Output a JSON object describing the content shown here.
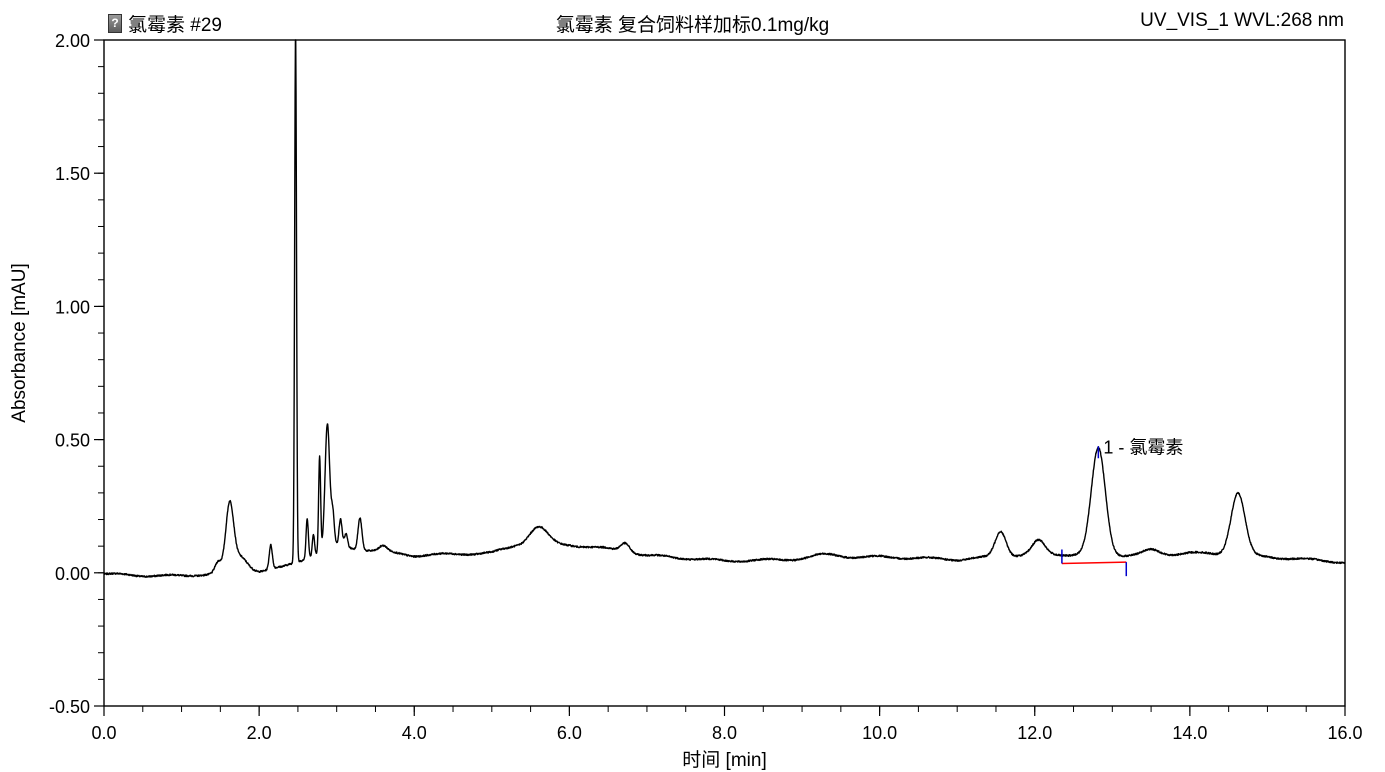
{
  "header": {
    "sample_label": "氯霉素 #29",
    "sample_icon": "document-icon",
    "title": "氯霉素 复合饲料样加标0.1mg/kg",
    "channel": "UV_VIS_1 WVL:268 nm"
  },
  "colors": {
    "trace": "#000000",
    "baseline": "#ff0000",
    "peak_marker": "#0000cc"
  },
  "chart_data": {
    "type": "line",
    "title": "氯霉素 复合饲料样加标0.1mg/kg",
    "xlabel": "时间 [min]",
    "ylabel": "Absorbance [mAU]",
    "xlim": [
      0,
      16
    ],
    "ylim": [
      -0.5,
      2.0
    ],
    "x_ticks": [
      0,
      2,
      4,
      6,
      8,
      10,
      12,
      14,
      16
    ],
    "x_tick_labels": [
      "0.0",
      "2.0",
      "4.0",
      "6.0",
      "8.0",
      "10.0",
      "12.0",
      "14.0",
      "16.0"
    ],
    "y_ticks": [
      -0.5,
      0,
      0.5,
      1,
      1.5,
      2
    ],
    "y_tick_labels": [
      "-0.50",
      "0.00",
      "0.50",
      "1.00",
      "1.50",
      "2.00"
    ],
    "grid": false,
    "baseline_points": [
      [
        0.0,
        -0.005
      ],
      [
        0.5,
        -0.01
      ],
      [
        1.0,
        -0.012
      ],
      [
        1.3,
        -0.005
      ],
      [
        2.0,
        0.005
      ],
      [
        2.3,
        0.02
      ],
      [
        3.0,
        0.1
      ],
      [
        4.0,
        0.065
      ],
      [
        5.0,
        0.075
      ],
      [
        5.3,
        0.1
      ],
      [
        6.0,
        0.105
      ],
      [
        6.5,
        0.09
      ],
      [
        7.0,
        0.065
      ],
      [
        8.0,
        0.045
      ],
      [
        9.0,
        0.05
      ],
      [
        10.0,
        0.06
      ],
      [
        11.0,
        0.05
      ],
      [
        12.0,
        0.07
      ],
      [
        13.5,
        0.065
      ],
      [
        14.0,
        0.075
      ],
      [
        15.0,
        0.06
      ],
      [
        16.0,
        0.04
      ]
    ],
    "peaks": [
      {
        "rt": 1.47,
        "h": 0.04,
        "w": 0.04
      },
      {
        "rt": 1.62,
        "h": 0.24,
        "w": 0.05
      },
      {
        "rt": 1.75,
        "h": 0.06,
        "w": 0.1
      },
      {
        "rt": 2.15,
        "h": 0.09,
        "w": 0.02
      },
      {
        "rt": 2.47,
        "h": 2.0,
        "w": 0.012
      },
      {
        "rt": 2.62,
        "h": 0.15,
        "w": 0.015
      },
      {
        "rt": 2.7,
        "h": 0.08,
        "w": 0.015
      },
      {
        "rt": 2.78,
        "h": 0.36,
        "w": 0.013
      },
      {
        "rt": 2.88,
        "h": 0.47,
        "w": 0.03
      },
      {
        "rt": 2.95,
        "h": 0.12,
        "w": 0.02
      },
      {
        "rt": 3.05,
        "h": 0.1,
        "w": 0.02
      },
      {
        "rt": 3.12,
        "h": 0.05,
        "w": 0.02
      },
      {
        "rt": 3.3,
        "h": 0.12,
        "w": 0.025
      },
      {
        "rt": 3.6,
        "h": 0.02,
        "w": 0.05
      },
      {
        "rt": 5.6,
        "h": 0.07,
        "w": 0.12
      },
      {
        "rt": 6.72,
        "h": 0.035,
        "w": 0.06
      },
      {
        "rt": 9.3,
        "h": 0.015,
        "w": 0.2
      },
      {
        "rt": 11.56,
        "h": 0.095,
        "w": 0.07
      },
      {
        "rt": 12.05,
        "h": 0.05,
        "w": 0.08
      },
      {
        "rt": 12.82,
        "h": 0.4,
        "w": 0.09
      },
      {
        "rt": 13.5,
        "h": 0.02,
        "w": 0.1
      },
      {
        "rt": 14.62,
        "h": 0.235,
        "w": 0.09
      }
    ],
    "integration": {
      "start": {
        "x": 12.35,
        "y": 0.035
      },
      "end": {
        "x": 13.18,
        "y": 0.04
      },
      "apex": {
        "x": 12.82,
        "y": 0.46
      },
      "label": "1 - 氯霉素"
    }
  }
}
